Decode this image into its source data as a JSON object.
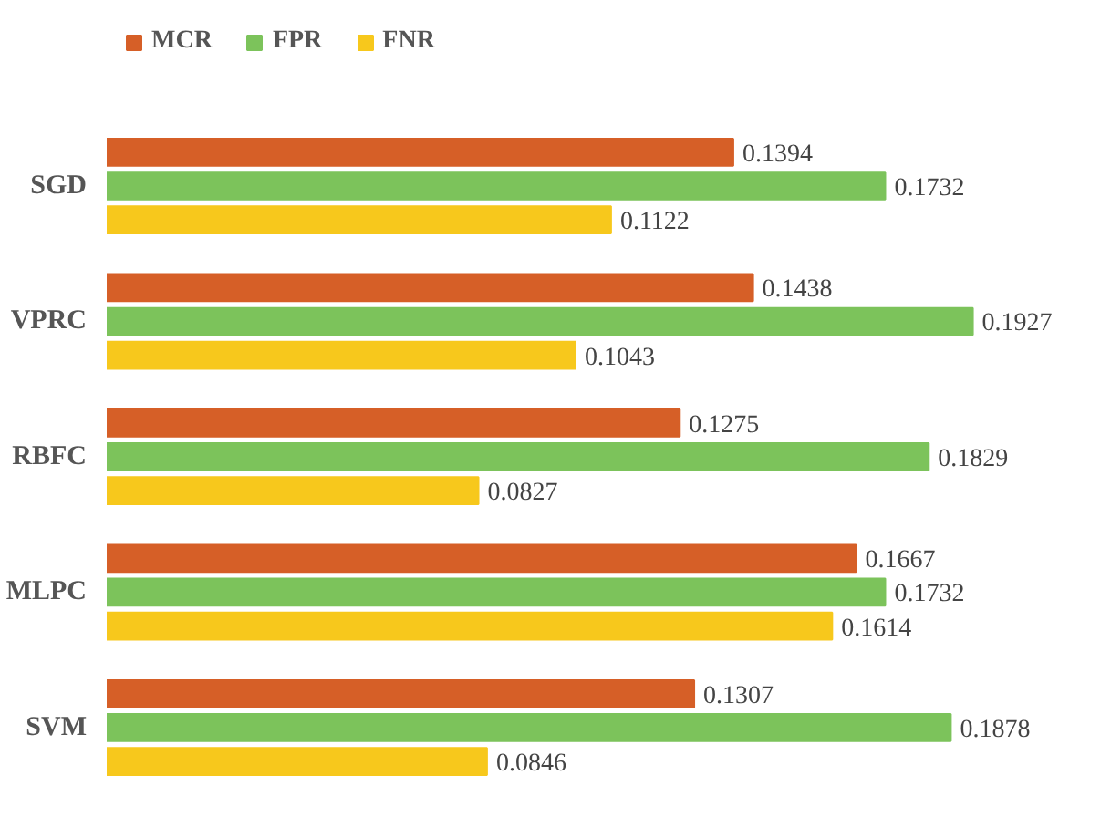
{
  "chart_data": {
    "type": "bar",
    "orientation": "horizontal",
    "categories": [
      "SGD",
      "VPRC",
      "RBFC",
      "MLPC",
      "SVM"
    ],
    "series": [
      {
        "name": "MCR",
        "color": "#d65f27",
        "values": [
          0.1394,
          0.1438,
          0.1275,
          0.1667,
          0.1307
        ]
      },
      {
        "name": "FPR",
        "color": "#7cc35b",
        "values": [
          0.1732,
          0.1927,
          0.1829,
          0.1732,
          0.1878
        ]
      },
      {
        "name": "FNR",
        "color": "#f7c81c",
        "values": [
          0.1122,
          0.1043,
          0.0827,
          0.1614,
          0.0846
        ]
      }
    ],
    "data_labels": true,
    "legend": "top left",
    "grid": false
  }
}
